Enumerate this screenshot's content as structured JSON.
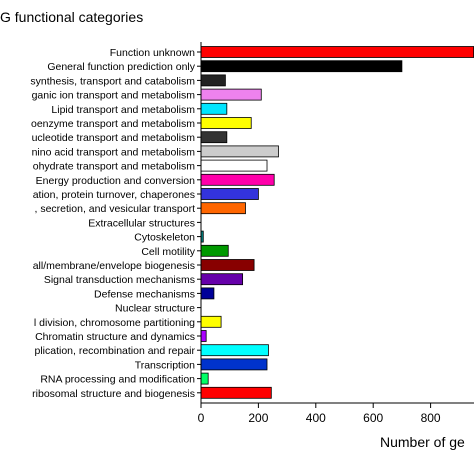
{
  "chart_data": {
    "type": "bar",
    "orientation": "horizontal",
    "title": "G functional categories",
    "xlabel": "Number of ge",
    "ylabel": "",
    "xlim": [
      0,
      950
    ],
    "xticks": [
      0,
      200,
      400,
      600,
      800
    ],
    "grid": false,
    "legend": "none",
    "categories": [
      "Function unknown",
      "General function prediction only",
      "synthesis, transport and catabolism",
      "ganic ion transport and metabolism",
      "Lipid transport and metabolism",
      "oenzyme transport and metabolism",
      "ucleotide transport and metabolism",
      "nino acid transport and metabolism",
      "ohydrate transport and metabolism",
      "Energy production and conversion",
      "ation, protein turnover, chaperones",
      ", secretion, and vesicular transport",
      "Extracellular structures",
      "Cytoskeleton",
      "Cell motility",
      "all/membrane/envelope biogenesis",
      "Signal transduction mechanisms",
      "Defense mechanisms",
      "Nuclear structure",
      "l division, chromosome partitioning",
      "Chromatin structure and dynamics",
      "plication, recombination and repair",
      "Transcription",
      "RNA processing and modification",
      "ribosomal structure and biogenesis"
    ],
    "values": [
      960,
      700,
      85,
      210,
      90,
      175,
      90,
      270,
      230,
      255,
      200,
      155,
      0,
      8,
      95,
      185,
      145,
      45,
      0,
      70,
      18,
      235,
      230,
      25,
      245
    ],
    "colors": [
      "#ff0000",
      "#000000",
      "#222222",
      "#ee82ee",
      "#00e5ff",
      "#ffff00",
      "#333333",
      "#cccccc",
      "#ffffff",
      "#ff00aa",
      "#3333dd",
      "#ff6600",
      "#ffffff",
      "#008080",
      "#009900",
      "#880000",
      "#6600aa",
      "#000099",
      "#ffffff",
      "#ffff00",
      "#aa00ff",
      "#00ffff",
      "#0033cc",
      "#00ff66",
      "#ff0000"
    ]
  }
}
